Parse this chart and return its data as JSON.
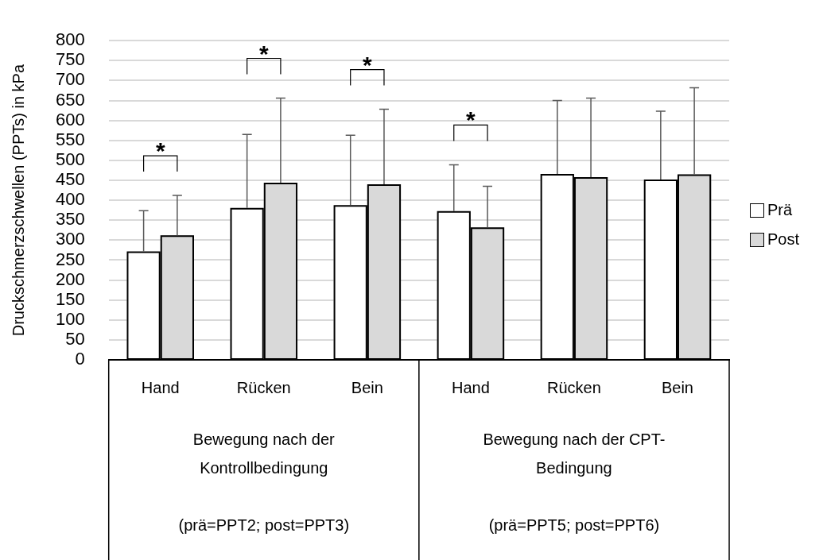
{
  "chart_data": {
    "type": "bar",
    "ylabel": "Druckschmerzschwellen (PPTs) in kPa",
    "categories": [
      "Hand",
      "Rücken",
      "Bein",
      "Hand",
      "Rücken",
      "Bein"
    ],
    "series": [
      {
        "name": "Prä",
        "color": "#ffffff",
        "values": [
          272,
          381,
          388,
          373,
          466,
          452
        ],
        "errors": [
          [
            272,
            374
          ],
          [
            381,
            565
          ],
          [
            388,
            563
          ],
          [
            373,
            489
          ],
          [
            466,
            650
          ],
          [
            452,
            623
          ]
        ]
      },
      {
        "name": "Post",
        "color": "#d9d9d9",
        "values": [
          312,
          444,
          440,
          332,
          458,
          465
        ],
        "errors": [
          [
            312,
            412
          ],
          [
            444,
            656
          ],
          [
            440,
            628
          ],
          [
            332,
            435
          ],
          [
            458,
            656
          ],
          [
            465,
            682
          ]
        ]
      }
    ],
    "ylim": [
      0,
      800
    ],
    "yticks": [
      0,
      50,
      100,
      150,
      200,
      250,
      300,
      350,
      400,
      450,
      500,
      550,
      600,
      650,
      700,
      750,
      800
    ],
    "grid": "y",
    "legend": "right",
    "annotations": [
      "*",
      "*",
      "*",
      "*",
      "Bewegung nach der\nKontrollbedingung\n\n(prä=PPT2; post=PPT3)",
      "Bewegung nach der CPT-\nBedingung\n\n(prä=PPT5; post=PPT6)"
    ]
  }
}
